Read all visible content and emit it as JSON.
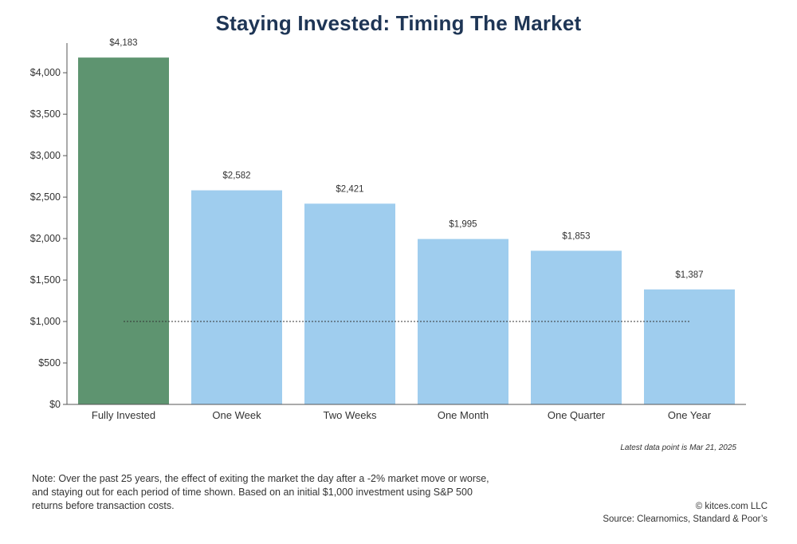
{
  "chart_data": {
    "type": "bar",
    "title": "Staying Invested: Timing The Market",
    "categories": [
      "Fully Invested",
      "One Week",
      "Two Weeks",
      "One Month",
      "One Quarter",
      "One Year"
    ],
    "values": [
      4183,
      2582,
      2421,
      1995,
      1853,
      1387
    ],
    "value_labels": [
      "$4,183",
      "$2,582",
      "$2,421",
      "$1,995",
      "$1,853",
      "$1,387"
    ],
    "bar_colors": [
      "#5e9470",
      "#9fcdee",
      "#9fcdee",
      "#9fcdee",
      "#9fcdee",
      "#9fcdee"
    ],
    "ylim": [
      0,
      4300
    ],
    "yticks": [
      0,
      500,
      1000,
      1500,
      2000,
      2500,
      3000,
      3500,
      4000
    ],
    "ytick_labels": [
      "$0",
      "$500",
      "$1,000",
      "$1,500",
      "$2,000",
      "$2,500",
      "$3,000",
      "$3,500",
      "$4,000"
    ],
    "reference_line": {
      "value": 1000,
      "style": "dotted"
    },
    "xlabel": "",
    "ylabel": "",
    "grid": false,
    "legend": "none"
  },
  "latest_note": "Latest data point is Mar 21, 2025",
  "note": "Note: Over the past 25 years, the effect of exiting the market the day after a -2% market move or worse, and staying out for each period of time shown. Based on an initial $1,000 investment using S&P 500 returns before transaction costs.",
  "credits": {
    "copyright": "© kitces.com LLC",
    "source": "Source: Clearnomics, Standard & Poor’s"
  },
  "colors": {
    "title": "#1e3555",
    "fully_invested": "#5e9470",
    "timed": "#9fcdee"
  }
}
